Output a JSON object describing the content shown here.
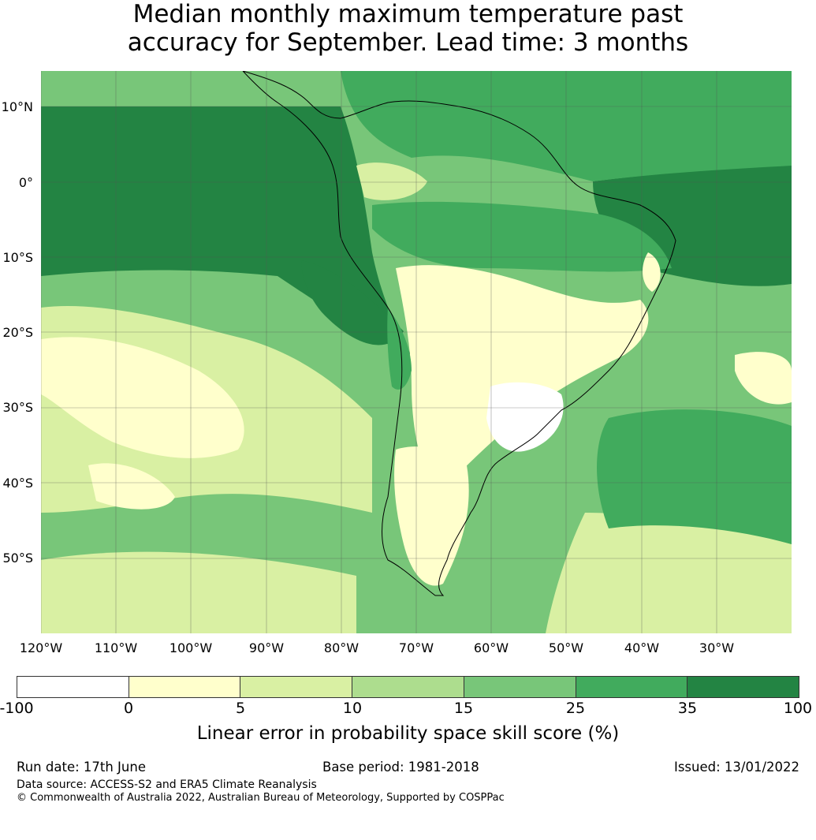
{
  "title": {
    "line1": "Median monthly maximum temperature past",
    "line2": "accuracy for September. Lead time: 3 months"
  },
  "map": {
    "lat_labels": [
      "10°N",
      "0°",
      "10°S",
      "20°S",
      "30°S",
      "40°S",
      "50°S"
    ],
    "lon_labels": [
      "120°W",
      "110°W",
      "100°W",
      "90°W",
      "80°W",
      "70°W",
      "60°W",
      "50°W",
      "40°W",
      "30°W"
    ],
    "colors": {
      "band_neg100_0": "#ffffff",
      "band_0_5": "#ffffcc",
      "band_5_10": "#d9f0a3",
      "band_10_15": "#addd8e",
      "band_15_25": "#78c679",
      "band_25_35": "#41ab5d",
      "band_35_100": "#238443",
      "coastline": "#000000",
      "gridline": "#555555"
    }
  },
  "colorbar": {
    "ticks": [
      "-100",
      "0",
      "5",
      "10",
      "15",
      "25",
      "35",
      "100"
    ],
    "label": "Linear error in probability space skill score (%)"
  },
  "footer": {
    "run_date": "Run date: 17th June",
    "base_period": "Base period: 1981-2018",
    "issued": "Issued: 13/01/2022",
    "data_source": "Data source: ACCESS-S2 and ERA5 Climate Reanalysis",
    "copyright": "© Commonwealth of Australia 2022, Australian Bureau of Meteorology, Supported by COSPPac"
  }
}
